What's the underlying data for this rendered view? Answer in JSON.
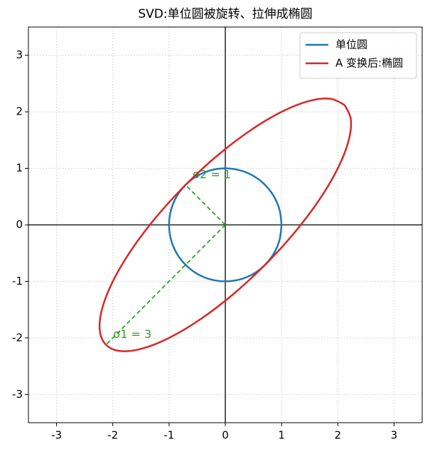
{
  "chart_data": {
    "type": "line",
    "title": "SVD:单位圆被旋转、拉伸成椭圆",
    "xlim": [
      -3.5,
      3.5
    ],
    "ylim": [
      -3.5,
      3.5
    ],
    "xticks": [
      -3,
      -2,
      -1,
      0,
      1,
      2,
      3
    ],
    "yticks": [
      -3,
      -2,
      -1,
      0,
      1,
      2,
      3
    ],
    "grid": true,
    "zero_lines": true,
    "legend": "upper right",
    "smooth": true,
    "series": [
      {
        "name": "单位圆",
        "color": "#1f77b4",
        "x": [
          1,
          0.966,
          0.866,
          0.707,
          0.5,
          0.259,
          0,
          -0.259,
          -0.5,
          -0.707,
          -0.866,
          -0.966,
          -1,
          -0.966,
          -0.866,
          -0.707,
          -0.5,
          -0.259,
          0,
          0.259,
          0.5,
          0.707,
          0.866,
          0.966,
          1
        ],
        "y": [
          0,
          0.259,
          0.5,
          0.707,
          0.866,
          0.966,
          1,
          0.966,
          0.866,
          0.707,
          0.5,
          0.259,
          0,
          -0.259,
          -0.5,
          -0.707,
          -0.866,
          -0.966,
          -1,
          -0.966,
          -0.866,
          -0.707,
          -0.5,
          -0.259,
          0
        ]
      },
      {
        "name": "A 变换后:椭圆",
        "color": "#d62728",
        "x": [
          2.121,
          1.866,
          1.483,
          1.0,
          0.448,
          -0.134,
          -0.707,
          -1.232,
          -1.673,
          -2.0,
          -2.19,
          -2.232,
          -2.121,
          -1.866,
          -1.483,
          -1.0,
          -0.448,
          0.134,
          0.707,
          1.232,
          1.673,
          2.0,
          2.19,
          2.232,
          2.121
        ],
        "y": [
          2.121,
          2.232,
          2.19,
          2.0,
          1.673,
          1.232,
          0.707,
          0.134,
          -0.448,
          -1.0,
          -1.483,
          -1.866,
          -2.121,
          -2.232,
          -2.19,
          -2.0,
          -1.673,
          -1.232,
          -0.707,
          -0.134,
          0.448,
          1.0,
          1.483,
          1.866,
          2.121
        ]
      }
    ],
    "annotations": [
      {
        "label": "σ1 = 3",
        "color": "#2ca02c",
        "x": [
          0,
          -2.121
        ],
        "y": [
          0,
          -2.121
        ]
      },
      {
        "label": "σ2 = 1",
        "color": "#2ca02c",
        "x": [
          0,
          -0.707
        ],
        "y": [
          0,
          0.707
        ]
      }
    ]
  }
}
